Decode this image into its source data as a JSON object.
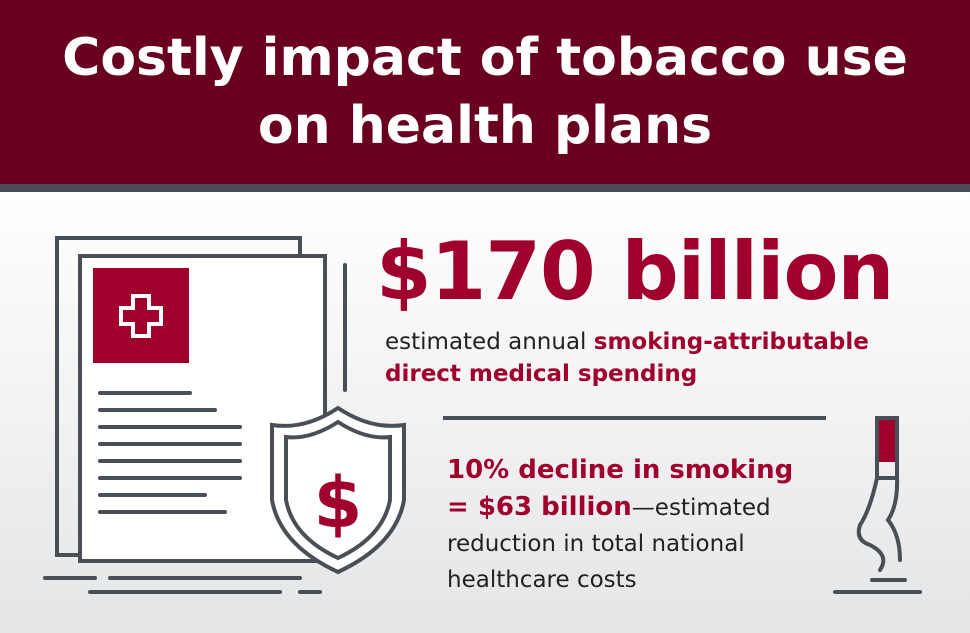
{
  "header": {
    "title": "Costly impact of tobacco use on health plans"
  },
  "stat1": {
    "value": "$170 billion",
    "caption_plain": "estimated annual",
    "caption_highlight": "smoking-attributable direct medical spending"
  },
  "stat2": {
    "highlight_line1": "10% decline in smoking",
    "highlight_line2": "= $63 billion",
    "caption": "—estimated reduction in total national healthcare costs"
  }
}
